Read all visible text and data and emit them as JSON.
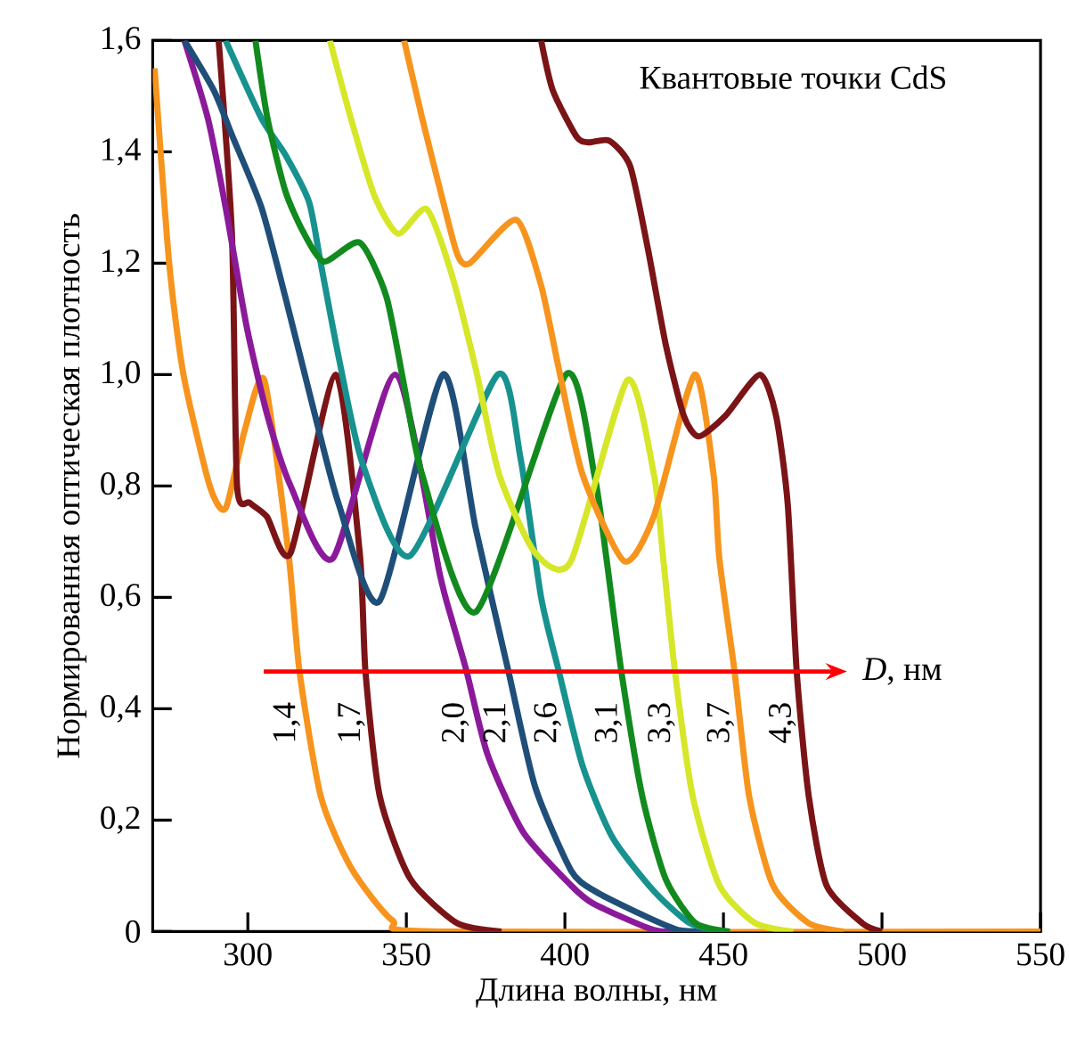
{
  "chart_data": {
    "type": "line",
    "title": "Квантовые точки CdS",
    "xlabel": "Длина волны, нм",
    "ylabel": "Нормированная оптическая плотность",
    "annotations": [
      "*D*, нм"
    ],
    "xlim": [
      270,
      550
    ],
    "ylim": [
      0,
      1.6
    ],
    "xticks": [
      300,
      350,
      400,
      450,
      500,
      550
    ],
    "yticks": [
      0,
      {
        "value": 0.2,
        "label": "0,2"
      },
      {
        "value": 0.4,
        "label": "0,4"
      },
      {
        "value": 0.6,
        "label": "0,6"
      },
      {
        "value": 0.8,
        "label": "0,8"
      },
      {
        "value": 1.0,
        "label": "1,0"
      },
      {
        "value": 1.2,
        "label": "1,2"
      },
      {
        "value": 1.4,
        "label": "1,4"
      },
      {
        "value": 1.6,
        "label": "1,6"
      }
    ],
    "legend": false,
    "grid": false,
    "series": [
      {
        "name": "1,4",
        "color": "#f7941d",
        "x": [
          270.6,
          275.2,
          279.7,
          288,
          293,
          299,
          305.2,
          312.8,
          316.3,
          323,
          332.5,
          345.6,
          360,
          550
        ],
        "values": [
          1.55,
          1.2,
          1.0,
          0.8,
          0.76,
          0.9,
          0.99,
          0.68,
          0.467,
          0.243,
          0.115,
          0.02,
          0,
          0
        ]
      },
      {
        "name": "1,7",
        "color": "#7b1416",
        "x": [
          290.8,
          295,
          296.6,
          300.6,
          306,
          313.5,
          327.7,
          335.3,
          337.1,
          341.6,
          351.2,
          366,
          380
        ],
        "values": [
          1.6,
          1.25,
          0.8,
          0.77,
          0.745,
          0.68,
          1.0,
          0.68,
          0.467,
          0.243,
          0.095,
          0.015,
          0
        ]
      },
      {
        "name": "2,0",
        "color": "#8b1a9a",
        "x": [
          280,
          287.4,
          293,
          299.6,
          306.2,
          313.5,
          326.8,
          346.5,
          360.6,
          364.2,
          369,
          375.6,
          386.8,
          401.9,
          409,
          428,
          440
        ],
        "values": [
          1.6,
          1.46,
          1.3,
          1.087,
          0.926,
          0.8,
          0.67,
          1.0,
          0.64,
          0.563,
          0.467,
          0.318,
          0.179,
          0.083,
          0.05,
          0.003,
          0
        ]
      },
      {
        "name": "2,1",
        "color": "#1f4e79",
        "x": [
          280,
          289.3,
          295,
          304.3,
          311.8,
          321.2,
          328.7,
          341.5,
          361.5,
          371.9,
          382.2,
          390.6,
          401.9,
          409.3,
          424.4,
          435.6,
          445
        ],
        "values": [
          1.6,
          1.51,
          1.43,
          1.3,
          1.14,
          0.927,
          0.767,
          0.593,
          1.0,
          0.723,
          0.467,
          0.26,
          0.11,
          0.073,
          0.03,
          0.003,
          0
        ]
      },
      {
        "name": "2,6",
        "color": "#17928f",
        "x": [
          293,
          304.3,
          311.8,
          319.3,
          323,
          328.7,
          336.2,
          351.2,
          378.8,
          386,
          392.5,
          398.1,
          405.6,
          415,
          428,
          439.4,
          450
        ],
        "values": [
          1.6,
          1.46,
          1.395,
          1.31,
          1.2,
          1.03,
          0.84,
          0.675,
          1.0,
          0.85,
          0.6,
          0.467,
          0.297,
          0.169,
          0.073,
          0.015,
          0
        ]
      },
      {
        "name": "3,1",
        "color": "#128a1e",
        "x": [
          302.4,
          306.2,
          311.8,
          317.4,
          324,
          335.3,
          343.7,
          349.3,
          355,
          371.9,
          400.3,
          409.3,
          413.1,
          417.8,
          424.4,
          431.8,
          441.2,
          452
        ],
        "values": [
          1.6,
          1.46,
          1.33,
          1.257,
          1.203,
          1.237,
          1.14,
          0.98,
          0.82,
          0.574,
          1.0,
          0.82,
          0.67,
          0.467,
          0.243,
          0.094,
          0.015,
          0
        ]
      },
      {
        "name": "3,3",
        "color": "#d6e629",
        "x": [
          325.9,
          332.5,
          340,
          347.4,
          356.4,
          364.3,
          371.9,
          379.3,
          390.6,
          401.9,
          419.7,
          428.1,
          431,
          434.7,
          440.3,
          448.7,
          460,
          472
        ],
        "values": [
          1.6,
          1.46,
          1.32,
          1.253,
          1.297,
          1.18,
          1.01,
          0.82,
          0.68,
          0.665,
          0.99,
          0.82,
          0.67,
          0.467,
          0.243,
          0.083,
          0.015,
          0
        ]
      },
      {
        "name": "3,7",
        "color": "#f7941d",
        "x": [
          349.3,
          355,
          362.5,
          366.2,
          370,
          384.6,
          392.5,
          398.1,
          405.6,
          418.7,
          428,
          440.9,
          446.9,
          448.7,
          453.5,
          458.1,
          465.6,
          476.9,
          488
        ],
        "values": [
          1.6,
          1.46,
          1.29,
          1.214,
          1.2,
          1.278,
          1.16,
          1.01,
          0.82,
          0.665,
          0.745,
          1.0,
          0.82,
          0.67,
          0.467,
          0.243,
          0.083,
          0.015,
          0
        ]
      },
      {
        "name": "4,3",
        "color": "#7b1416",
        "x": [
          392.5,
          396.2,
          403.7,
          407.5,
          414,
          420.6,
          426.2,
          431.8,
          437.5,
          442.2,
          450.6,
          461.5,
          466.6,
          470.3,
          473.1,
          476.9,
          482.5,
          493.8,
          500
        ],
        "values": [
          1.6,
          1.51,
          1.427,
          1.417,
          1.42,
          1.374,
          1.225,
          1.054,
          0.926,
          0.889,
          0.926,
          1.0,
          0.926,
          0.766,
          0.467,
          0.243,
          0.083,
          0.015,
          0
        ]
      }
    ]
  }
}
